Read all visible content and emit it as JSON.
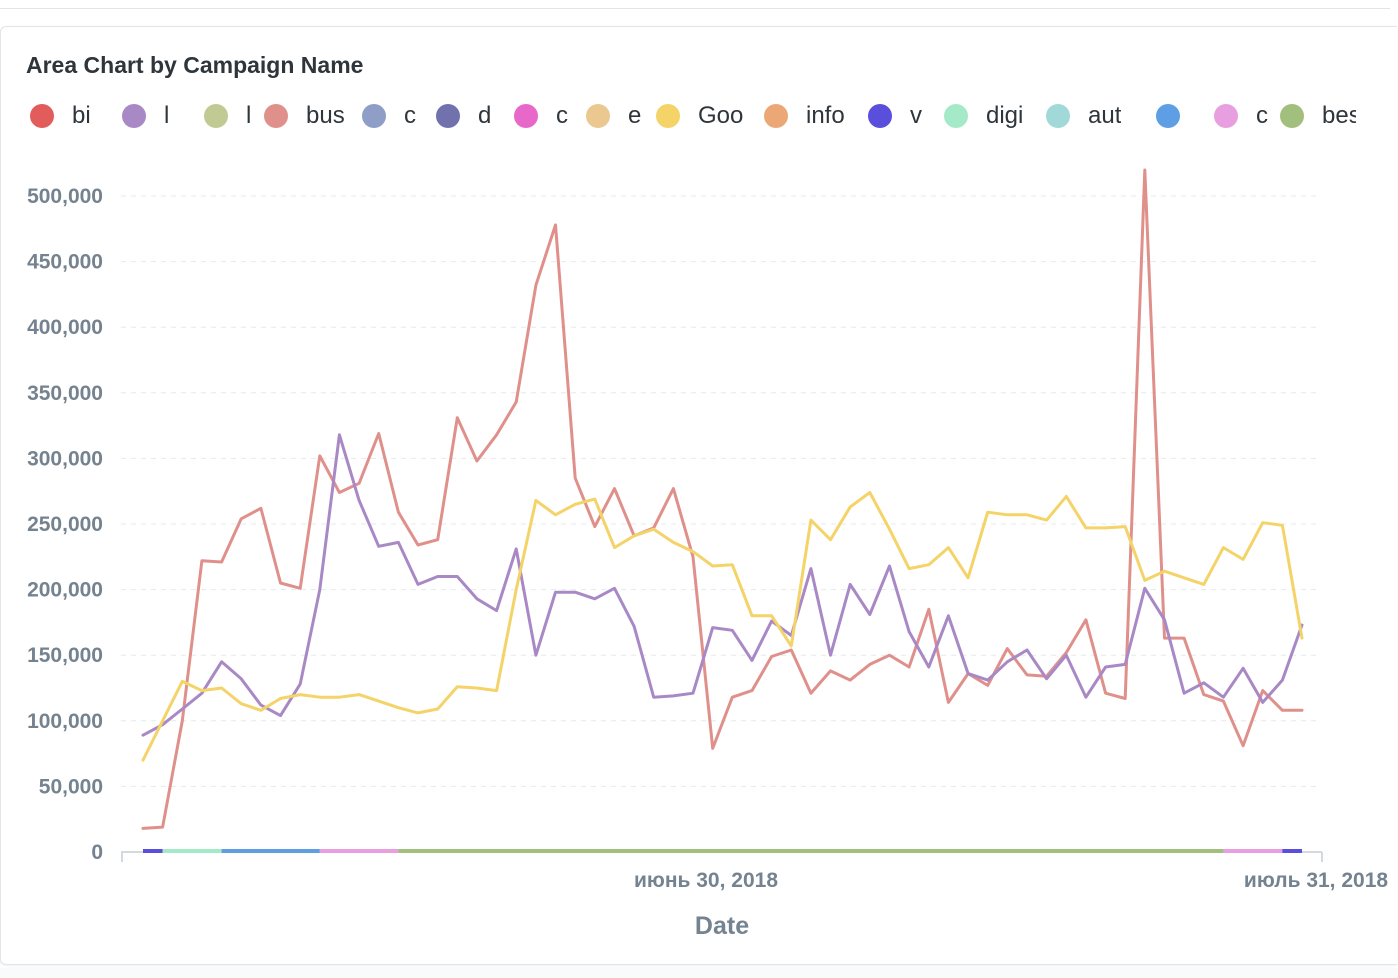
{
  "chart_data": {
    "type": "line",
    "title": "Area Chart by Campaign Name",
    "xlabel": "Date",
    "ylabel": "",
    "ylim": [
      0,
      500000
    ],
    "y_ticks": [
      "0",
      "50,000",
      "100,000",
      "150,000",
      "200,000",
      "250,000",
      "300,000",
      "350,000",
      "400,000",
      "450,000",
      "500,000"
    ],
    "x_ticks": [
      {
        "label": "июнь 30, 2018",
        "index": 30
      },
      {
        "label": "июль 31, 2018",
        "index": 61
      }
    ],
    "grid": true,
    "legend_position": "top",
    "legend": [
      {
        "label": "bi",
        "color": "#e35c5c"
      },
      {
        "label": "l",
        "color": "#a989c5"
      },
      {
        "label": "l",
        "color": "#c2ca94"
      },
      {
        "label": "bus",
        "color": "#e0908b"
      },
      {
        "label": "c",
        "color": "#8e9ec6"
      },
      {
        "label": "d",
        "color": "#7172ad"
      },
      {
        "label": "c",
        "color": "#e868c9"
      },
      {
        "label": "e",
        "color": "#ecc891"
      },
      {
        "label": "Goo",
        "color": "#f4d368"
      },
      {
        "label": "info",
        "color": "#eba776"
      },
      {
        "label": "v",
        "color": "#5a4fdc"
      },
      {
        "label": "digi",
        "color": "#a5eac8"
      },
      {
        "label": "aut",
        "color": "#a1d8d8"
      },
      {
        "label": "",
        "color": "#5e9ee4"
      },
      {
        "label": "c",
        "color": "#e89fe0"
      },
      {
        "label": "best",
        "color": "#a2bf7d"
      }
    ],
    "series": [
      {
        "color": "#e0908b",
        "values": [
          18000,
          19000,
          100000,
          222000,
          221000,
          254000,
          262000,
          205000,
          201000,
          302000,
          274000,
          281000,
          319000,
          259000,
          234000,
          238000,
          331000,
          298000,
          318000,
          343000,
          432000,
          478000,
          285000,
          248000,
          277000,
          241000,
          247000,
          277000,
          225000,
          79000,
          118000,
          123000,
          149000,
          154000,
          121000,
          138000,
          131000,
          143000,
          150000,
          141000,
          185000,
          114000,
          136000,
          127000,
          155000,
          135000,
          134000,
          152000,
          177000,
          121000,
          117000,
          520000,
          163000,
          163000,
          120000,
          115000,
          81000,
          123000,
          108000,
          108000
        ]
      },
      {
        "color": "#a989c5",
        "values": [
          89000,
          97000,
          109000,
          121000,
          145000,
          132000,
          112000,
          104000,
          128000,
          200000,
          318000,
          268000,
          233000,
          236000,
          204000,
          210000,
          210000,
          193000,
          184000,
          231000,
          150000,
          198000,
          198000,
          193000,
          201000,
          172000,
          118000,
          119000,
          121000,
          171000,
          169000,
          146000,
          176000,
          165000,
          216000,
          150000,
          204000,
          181000,
          218000,
          168000,
          141000,
          180000,
          136000,
          131000,
          145000,
          154000,
          132000,
          150000,
          118000,
          141000,
          143000,
          201000,
          177000,
          121000,
          129000,
          118000,
          140000,
          114000,
          131000,
          173000
        ]
      },
      {
        "color": "#f4d368",
        "values": [
          70000,
          100000,
          130000,
          123000,
          125000,
          113000,
          108000,
          117000,
          120000,
          118000,
          118000,
          120000,
          115000,
          110000,
          106000,
          109000,
          126000,
          125000,
          123000,
          200000,
          268000,
          257000,
          265000,
          269000,
          232000,
          241000,
          246000,
          236000,
          229000,
          218000,
          219000,
          180000,
          180000,
          157000,
          253000,
          238000,
          263000,
          274000,
          246000,
          216000,
          219000,
          232000,
          209000,
          259000,
          257000,
          257000,
          253000,
          271000,
          247000,
          247000,
          248000,
          207000,
          214000,
          209000,
          204000,
          232000,
          223000,
          251000,
          249000,
          163000
        ]
      }
    ],
    "baseline_segments": [
      {
        "from": 0,
        "to": 1,
        "color": "#5a4fdc"
      },
      {
        "from": 1,
        "to": 4,
        "color": "#a5eac8"
      },
      {
        "from": 4,
        "to": 9,
        "color": "#5e9ee4"
      },
      {
        "from": 9,
        "to": 13,
        "color": "#e89fe0"
      },
      {
        "from": 13,
        "to": 55,
        "color": "#a2bf7d"
      },
      {
        "from": 55,
        "to": 58,
        "color": "#e89fe0"
      },
      {
        "from": 58,
        "to": 59,
        "color": "#5a4fdc"
      }
    ]
  }
}
